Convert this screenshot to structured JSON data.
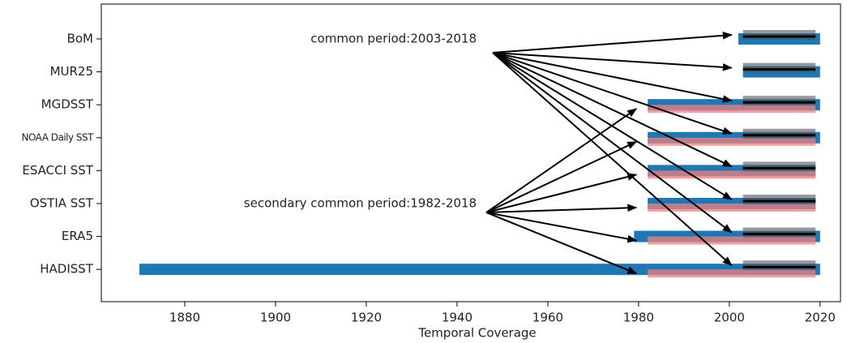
{
  "chart_data": {
    "type": "range-bar",
    "categories": [
      "BoM",
      "MUR25",
      "MGDSST",
      "NOAA Daily SST",
      "ESACCI SST",
      "OSTIA SST",
      "ERA5",
      "HADISST"
    ],
    "series": [
      {
        "color": "#1f77b4",
        "start": [
          2002,
          2003,
          1982,
          1982,
          1982,
          1982,
          1979,
          1870
        ],
        "end": [
          2020,
          2020,
          2020,
          2020,
          2019,
          2019,
          2020,
          2020
        ]
      },
      {
        "color": "#f08080",
        "start": [
          null,
          null,
          1982,
          1982,
          1982,
          1982,
          1982,
          1982
        ],
        "end": [
          null,
          null,
          2019,
          2019,
          2019,
          2019,
          2019,
          2019
        ]
      },
      {
        "color": "#555555",
        "start": [
          2003,
          2003,
          2003,
          2003,
          2003,
          2003,
          2003,
          2003
        ],
        "end": [
          2019,
          2019,
          2019,
          2019,
          2019,
          2019,
          2019,
          2019
        ]
      }
    ],
    "annotations": [
      {
        "text": "common period:2003-2018",
        "series": 2
      },
      {
        "text": "secondary common period:1982-2018",
        "series": 1
      }
    ],
    "xlabel": "Temporal Coverage",
    "xlim": [
      1861.6,
      2024.5
    ],
    "xticks": [
      1880,
      1900,
      1920,
      1940,
      1960,
      1980,
      2000,
      2020
    ]
  }
}
